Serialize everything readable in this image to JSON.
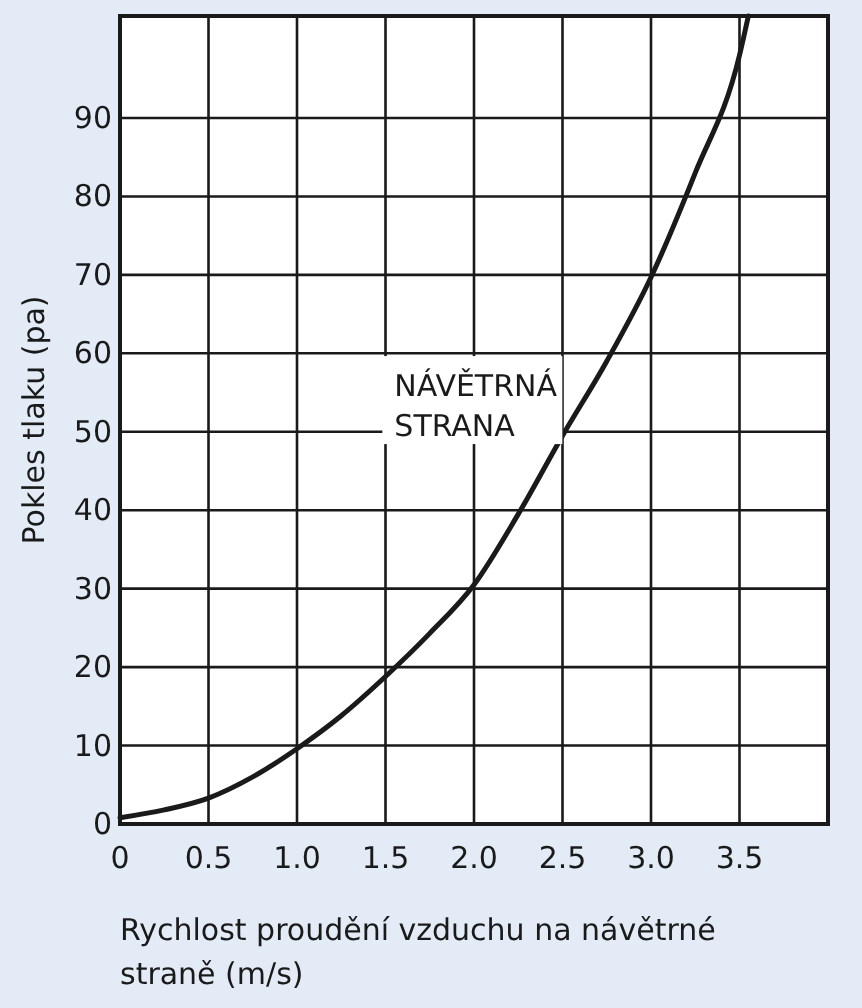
{
  "chart_data": {
    "type": "line",
    "xlabel": "Rychlost proudění vzduchu na návětrné straně (m/s)",
    "ylabel": "Pokles tlaku (pa)",
    "x": [
      0,
      0.25,
      0.5,
      0.75,
      1.0,
      1.25,
      1.5,
      1.75,
      2.0,
      2.25,
      2.5,
      2.75,
      3.0,
      3.25,
      3.5,
      3.55
    ],
    "series": [
      {
        "name": "NÁVĚTRNÁ STRANA",
        "color": "#1a1a1a",
        "values": [
          0.8,
          1.8,
          3.3,
          6,
          9.6,
          13.8,
          18.8,
          24.3,
          30.5,
          39.5,
          49.5,
          59,
          69.7,
          83,
          98,
          103
        ]
      }
    ],
    "xlim": [
      0,
      4.0
    ],
    "xticks": [
      0,
      0.5,
      {
        "value": 1,
        "label": "1.0"
      },
      1.5,
      {
        "value": 2,
        "label": "2.0"
      },
      2.5,
      {
        "value": 3,
        "label": "3.0"
      },
      3.5
    ],
    "ylim": [
      0,
      103
    ],
    "yticks": [
      0,
      10,
      20,
      30,
      40,
      50,
      60,
      70,
      80,
      90
    ],
    "grid": true,
    "marker": "none",
    "line_style": "solid"
  }
}
